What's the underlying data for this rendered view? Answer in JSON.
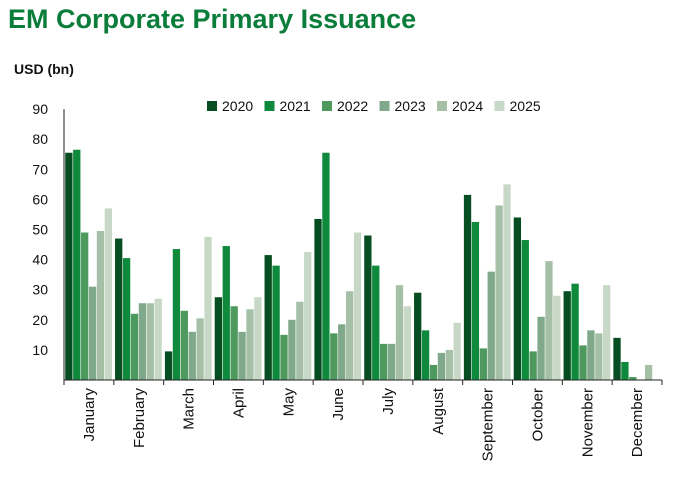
{
  "title": "EM Corporate Primary Issuance",
  "chart_data": {
    "type": "bar",
    "title": "EM Corporate Primary Issuance",
    "ylabel": "USD (bn)",
    "xlabel": "",
    "ylim": [
      0,
      90
    ],
    "yticks": [
      10,
      20,
      30,
      40,
      50,
      60,
      70,
      80,
      90
    ],
    "grid": false,
    "legend": "top",
    "categories": [
      "January",
      "February",
      "March",
      "April",
      "May",
      "June",
      "July",
      "August",
      "September",
      "October",
      "November",
      "December"
    ],
    "series": [
      {
        "name": "2020",
        "color": "#064d22",
        "values": [
          75.5,
          47,
          9.5,
          27.5,
          41.5,
          53.5,
          48,
          29,
          61.5,
          54,
          29.5,
          14
        ]
      },
      {
        "name": "2021",
        "color": "#0f8a3c",
        "values": [
          76.5,
          40.5,
          43.5,
          44.5,
          38,
          75.5,
          38,
          16.5,
          52.5,
          46.5,
          32,
          6
        ]
      },
      {
        "name": "2022",
        "color": "#4e9a5e",
        "values": [
          49,
          22,
          23,
          24.5,
          15,
          15.5,
          12,
          5,
          10.5,
          9.5,
          11.5,
          1
        ]
      },
      {
        "name": "2023",
        "color": "#7fa98a",
        "values": [
          31,
          25.5,
          16,
          16,
          20,
          18.5,
          12,
          9,
          36,
          21,
          16.5,
          0
        ]
      },
      {
        "name": "2024",
        "color": "#a6c0a8",
        "values": [
          49.5,
          25.5,
          20.5,
          23.5,
          26,
          29.5,
          31.5,
          10,
          58,
          39.5,
          15.5,
          5
        ]
      },
      {
        "name": "2025",
        "color": "#c8d8c6",
        "values": [
          57,
          27,
          47.5,
          27.5,
          42.5,
          49,
          24.5,
          19,
          65,
          28,
          31.5,
          null
        ]
      }
    ]
  }
}
